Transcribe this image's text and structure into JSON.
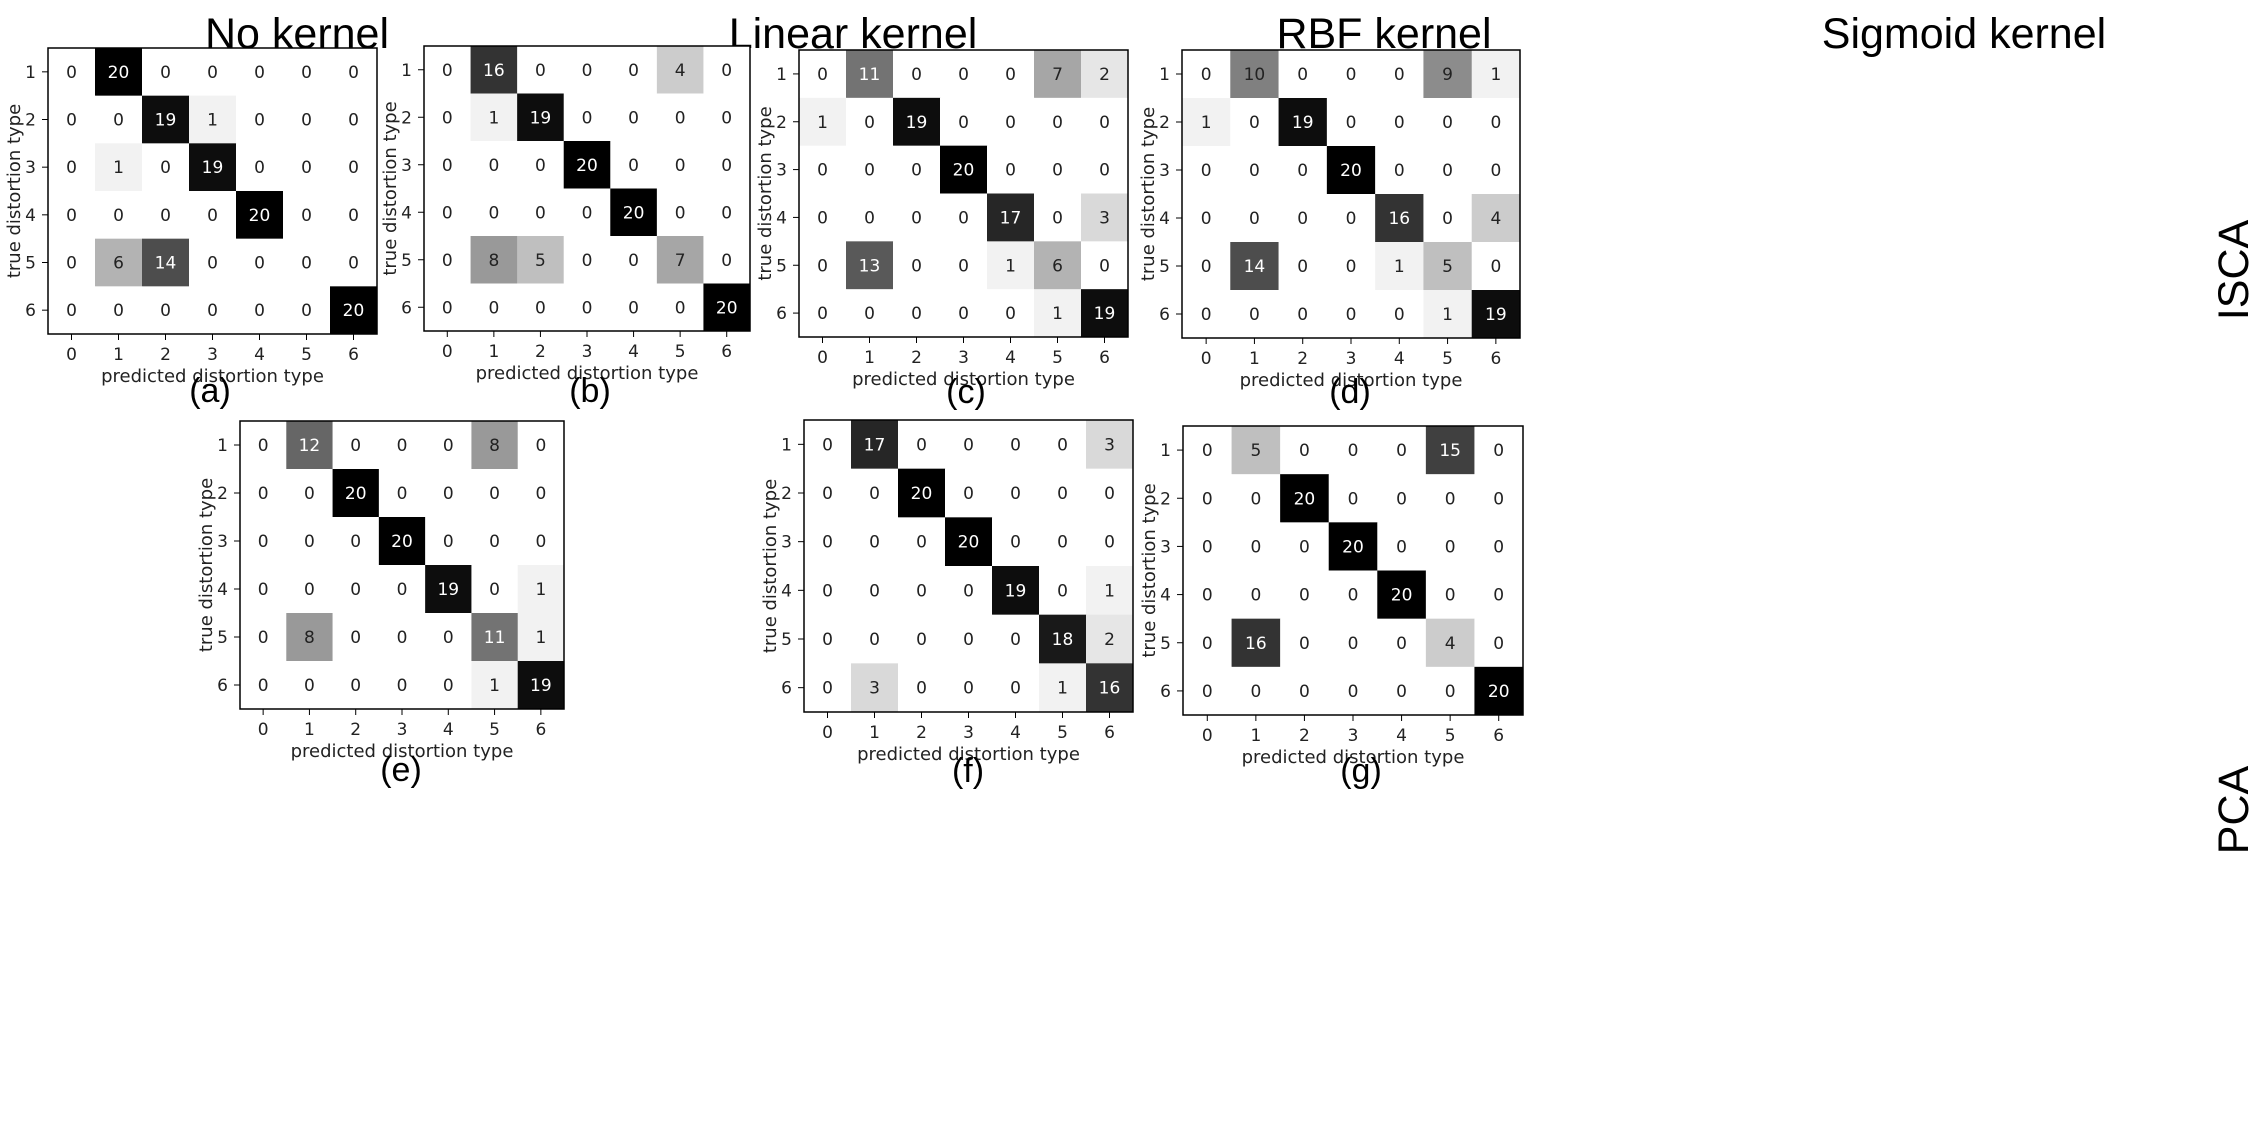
{
  "figure": {
    "column_titles": [
      "No kernel",
      "Linear kernel",
      "RBF kernel",
      "Sigmoid kernel"
    ],
    "row_labels": [
      "ISCA",
      "PCA"
    ]
  },
  "chart_data": [
    {
      "type": "heatmap",
      "panel": "(a)",
      "xlabel": "predicted distortion type",
      "ylabel": "true distortion type",
      "x_ticks": [
        "0",
        "1",
        "2",
        "3",
        "4",
        "5",
        "6"
      ],
      "y_ticks": [
        "1",
        "2",
        "3",
        "4",
        "5",
        "6"
      ],
      "values": [
        [
          0,
          20,
          0,
          0,
          0,
          0,
          0
        ],
        [
          0,
          0,
          19,
          1,
          0,
          0,
          0
        ],
        [
          0,
          1,
          0,
          19,
          0,
          0,
          0
        ],
        [
          0,
          0,
          0,
          0,
          20,
          0,
          0
        ],
        [
          0,
          6,
          14,
          0,
          0,
          0,
          0
        ],
        [
          0,
          0,
          0,
          0,
          0,
          0,
          20
        ]
      ]
    },
    {
      "type": "heatmap",
      "panel": "(b)",
      "xlabel": "predicted distortion type",
      "ylabel": "true distortion type",
      "x_ticks": [
        "0",
        "1",
        "2",
        "3",
        "4",
        "5",
        "6"
      ],
      "y_ticks": [
        "1",
        "2",
        "3",
        "4",
        "5",
        "6"
      ],
      "values": [
        [
          0,
          16,
          0,
          0,
          0,
          4,
          0
        ],
        [
          0,
          1,
          19,
          0,
          0,
          0,
          0
        ],
        [
          0,
          0,
          0,
          20,
          0,
          0,
          0
        ],
        [
          0,
          0,
          0,
          0,
          20,
          0,
          0
        ],
        [
          0,
          8,
          5,
          0,
          0,
          7,
          0
        ],
        [
          0,
          0,
          0,
          0,
          0,
          0,
          20
        ]
      ]
    },
    {
      "type": "heatmap",
      "panel": "(c)",
      "xlabel": "predicted distortion type",
      "ylabel": "true distortion type",
      "x_ticks": [
        "0",
        "1",
        "2",
        "3",
        "4",
        "5",
        "6"
      ],
      "y_ticks": [
        "1",
        "2",
        "3",
        "4",
        "5",
        "6"
      ],
      "values": [
        [
          0,
          11,
          0,
          0,
          0,
          7,
          2
        ],
        [
          1,
          0,
          19,
          0,
          0,
          0,
          0
        ],
        [
          0,
          0,
          0,
          20,
          0,
          0,
          0
        ],
        [
          0,
          0,
          0,
          0,
          17,
          0,
          3
        ],
        [
          0,
          13,
          0,
          0,
          1,
          6,
          0
        ],
        [
          0,
          0,
          0,
          0,
          0,
          1,
          19
        ]
      ]
    },
    {
      "type": "heatmap",
      "panel": "(d)",
      "xlabel": "predicted distortion type",
      "ylabel": "true distortion type",
      "x_ticks": [
        "0",
        "1",
        "2",
        "3",
        "4",
        "5",
        "6"
      ],
      "y_ticks": [
        "1",
        "2",
        "3",
        "4",
        "5",
        "6"
      ],
      "values": [
        [
          0,
          10,
          0,
          0,
          0,
          9,
          1
        ],
        [
          1,
          0,
          19,
          0,
          0,
          0,
          0
        ],
        [
          0,
          0,
          0,
          20,
          0,
          0,
          0
        ],
        [
          0,
          0,
          0,
          0,
          16,
          0,
          4
        ],
        [
          0,
          14,
          0,
          0,
          1,
          5,
          0
        ],
        [
          0,
          0,
          0,
          0,
          0,
          1,
          19
        ]
      ]
    },
    {
      "type": "heatmap",
      "panel": "(e)",
      "xlabel": "predicted distortion type",
      "ylabel": "true distortion type",
      "x_ticks": [
        "0",
        "1",
        "2",
        "3",
        "4",
        "5",
        "6"
      ],
      "y_ticks": [
        "1",
        "2",
        "3",
        "4",
        "5",
        "6"
      ],
      "values": [
        [
          0,
          12,
          0,
          0,
          0,
          8,
          0
        ],
        [
          0,
          0,
          20,
          0,
          0,
          0,
          0
        ],
        [
          0,
          0,
          0,
          20,
          0,
          0,
          0
        ],
        [
          0,
          0,
          0,
          0,
          19,
          0,
          1
        ],
        [
          0,
          8,
          0,
          0,
          0,
          11,
          1
        ],
        [
          0,
          0,
          0,
          0,
          0,
          1,
          19
        ]
      ]
    },
    {
      "type": "heatmap",
      "panel": "(f)",
      "xlabel": "predicted distortion type",
      "ylabel": "true distortion type",
      "x_ticks": [
        "0",
        "1",
        "2",
        "3",
        "4",
        "5",
        "6"
      ],
      "y_ticks": [
        "1",
        "2",
        "3",
        "4",
        "5",
        "6"
      ],
      "values": [
        [
          0,
          17,
          0,
          0,
          0,
          0,
          3
        ],
        [
          0,
          0,
          20,
          0,
          0,
          0,
          0
        ],
        [
          0,
          0,
          0,
          20,
          0,
          0,
          0
        ],
        [
          0,
          0,
          0,
          0,
          19,
          0,
          1
        ],
        [
          0,
          0,
          0,
          0,
          0,
          18,
          2
        ],
        [
          0,
          3,
          0,
          0,
          0,
          1,
          16
        ]
      ]
    },
    {
      "type": "heatmap",
      "panel": "(g)",
      "xlabel": "predicted distortion type",
      "ylabel": "true distortion type",
      "x_ticks": [
        "0",
        "1",
        "2",
        "3",
        "4",
        "5",
        "6"
      ],
      "y_ticks": [
        "1",
        "2",
        "3",
        "4",
        "5",
        "6"
      ],
      "values": [
        [
          0,
          5,
          0,
          0,
          0,
          15,
          0
        ],
        [
          0,
          0,
          20,
          0,
          0,
          0,
          0
        ],
        [
          0,
          0,
          0,
          20,
          0,
          0,
          0
        ],
        [
          0,
          0,
          0,
          0,
          20,
          0,
          0
        ],
        [
          0,
          16,
          0,
          0,
          0,
          4,
          0
        ],
        [
          0,
          0,
          0,
          0,
          0,
          0,
          20
        ]
      ]
    }
  ]
}
